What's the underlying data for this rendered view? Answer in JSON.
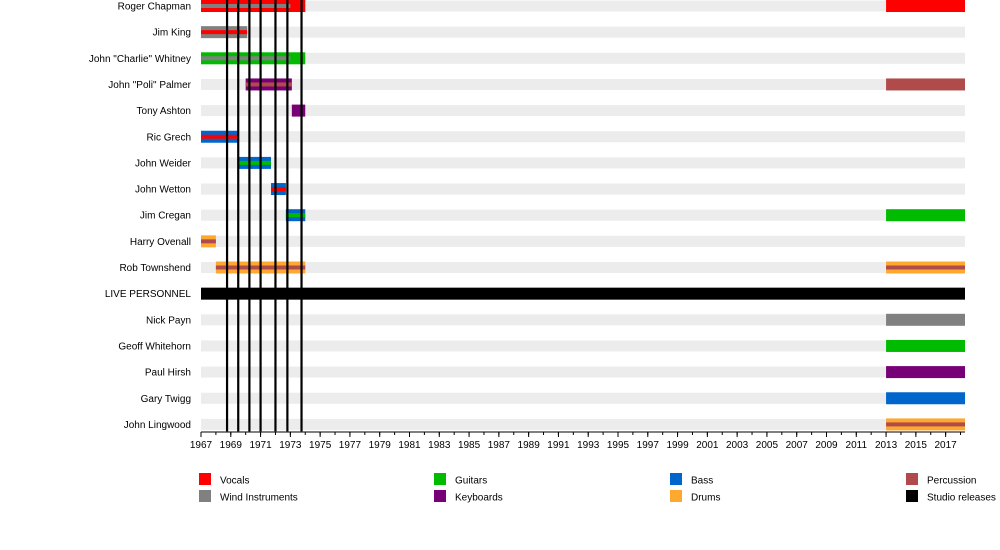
{
  "chart_data": {
    "type": "timeline",
    "x_range": [
      1967,
      2018.3
    ],
    "tick_step": 2,
    "tick_labels": [
      "1967",
      "1969",
      "1971",
      "1973",
      "1975",
      "1977",
      "1979",
      "1981",
      "1983",
      "1985",
      "1987",
      "1989",
      "1991",
      "1993",
      "1995",
      "1997",
      "1999",
      "2001",
      "2003",
      "2005",
      "2007",
      "2009",
      "2011",
      "2013",
      "2015",
      "2017"
    ],
    "colors": {
      "vocals": "#ff0000",
      "wind": "#808080",
      "guitars": "#00bb00",
      "keyboards": "#770077",
      "bass": "#0066cc",
      "drums": "#ffa830",
      "percussion": "#b04b4b",
      "releases": "#000000",
      "row_shade": "#ececec"
    },
    "rows": [
      {
        "name": "Roger Chapman",
        "segments": [
          {
            "start": 1967,
            "end": 1974,
            "role": "vocals",
            "overlay": "wind",
            "overlay_end": 1973
          },
          {
            "start": 2013,
            "end": 2018.3,
            "role": "vocals"
          }
        ]
      },
      {
        "name": "Jim King",
        "segments": [
          {
            "start": 1967,
            "end": 1970.1,
            "role": "wind",
            "overlay": "vocals"
          }
        ]
      },
      {
        "name": "John \"Charlie\" Whitney",
        "segments": [
          {
            "start": 1967,
            "end": 1974,
            "role": "guitars",
            "overlay": "wind",
            "overlay_end": 1973
          }
        ]
      },
      {
        "name": "John \"Poli\" Palmer",
        "segments": [
          {
            "start": 1970,
            "end": 1973.1,
            "role": "keyboards",
            "overlay": "percussion"
          },
          {
            "start": 2013,
            "end": 2018.3,
            "role": "percussion"
          }
        ]
      },
      {
        "name": "Tony Ashton",
        "segments": [
          {
            "start": 1973.1,
            "end": 1974,
            "role": "keyboards"
          }
        ]
      },
      {
        "name": "Ric Grech",
        "segments": [
          {
            "start": 1967,
            "end": 1969.5,
            "role": "bass",
            "overlay": "vocals"
          }
        ]
      },
      {
        "name": "John Weider",
        "segments": [
          {
            "start": 1969.5,
            "end": 1971.7,
            "role": "bass",
            "overlay": "guitars"
          }
        ]
      },
      {
        "name": "John Wetton",
        "segments": [
          {
            "start": 1971.7,
            "end": 1972.7,
            "role": "bass",
            "overlay": "vocals"
          }
        ]
      },
      {
        "name": "Jim Cregan",
        "segments": [
          {
            "start": 1972.7,
            "end": 1974,
            "role": "bass",
            "overlay": "guitars"
          },
          {
            "start": 2013,
            "end": 2018.3,
            "role": "guitars"
          }
        ]
      },
      {
        "name": "Harry Ovenall",
        "segments": [
          {
            "start": 1967,
            "end": 1968,
            "role": "drums",
            "overlay": "percussion"
          }
        ]
      },
      {
        "name": "Rob Townshend",
        "segments": [
          {
            "start": 1968,
            "end": 1974,
            "role": "drums",
            "overlay": "percussion"
          },
          {
            "start": 2013,
            "end": 2018.3,
            "role": "drums",
            "overlay": "percussion"
          }
        ]
      },
      {
        "name": "LIVE PERSONNEL",
        "separator": true,
        "segments": [
          {
            "start": 1967,
            "end": 2018.3,
            "role": "releases"
          }
        ]
      },
      {
        "name": "Nick Payn",
        "segments": [
          {
            "start": 2013,
            "end": 2018.3,
            "role": "wind"
          }
        ]
      },
      {
        "name": "Geoff Whitehorn",
        "segments": [
          {
            "start": 2013,
            "end": 2018.3,
            "role": "guitars"
          }
        ]
      },
      {
        "name": "Paul Hirsh",
        "segments": [
          {
            "start": 2013,
            "end": 2018.3,
            "role": "keyboards"
          }
        ]
      },
      {
        "name": "Gary Twigg",
        "segments": [
          {
            "start": 2013,
            "end": 2018.3,
            "role": "bass"
          }
        ]
      },
      {
        "name": "John Lingwood",
        "segments": [
          {
            "start": 2013,
            "end": 2018.3,
            "role": "drums",
            "overlay": "percussion"
          }
        ]
      }
    ],
    "release_years": [
      1968.75,
      1969.5,
      1970.25,
      1971,
      1972,
      1972.8,
      1973.75
    ],
    "legend": [
      {
        "label": "Vocals",
        "role": "vocals"
      },
      {
        "label": "Guitars",
        "role": "guitars"
      },
      {
        "label": "Bass",
        "role": "bass"
      },
      {
        "label": "Percussion",
        "role": "percussion"
      },
      {
        "label": "Wind Instruments",
        "role": "wind"
      },
      {
        "label": "Keyboards",
        "role": "keyboards"
      },
      {
        "label": "Drums",
        "role": "drums"
      },
      {
        "label": "Studio releases",
        "role": "releases"
      }
    ]
  }
}
